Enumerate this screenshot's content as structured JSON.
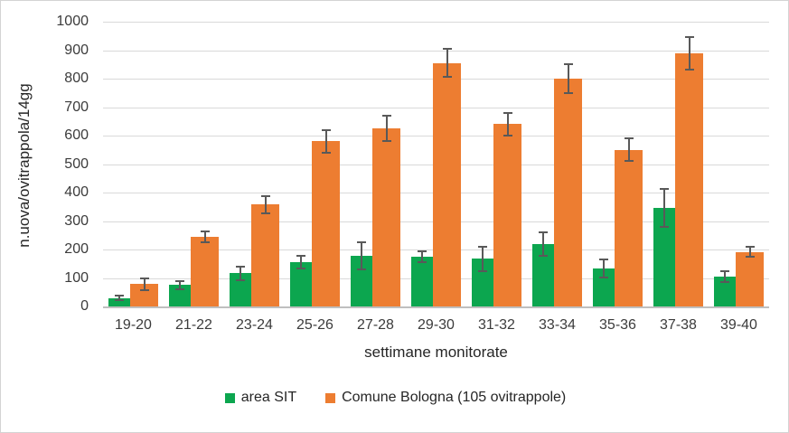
{
  "chart_data": {
    "type": "bar",
    "title": "",
    "xlabel": "settimane monitorate",
    "ylabel": "n.uova/ovitrappola/14gg",
    "ylim": [
      0,
      1000
    ],
    "ytick_step": 100,
    "yticks": [
      0,
      100,
      200,
      300,
      400,
      500,
      600,
      700,
      800,
      900,
      1000
    ],
    "categories": [
      "19-20",
      "21-22",
      "23-24",
      "25-26",
      "27-28",
      "29-30",
      "31-32",
      "33-34",
      "35-36",
      "37-38",
      "39-40"
    ],
    "series": [
      {
        "name": "area SIT",
        "color": "#0ca64f",
        "values": [
          30,
          75,
          117,
          155,
          178,
          175,
          167,
          220,
          133,
          345,
          105
        ],
        "errors": [
          12,
          17,
          27,
          25,
          52,
          23,
          45,
          45,
          34,
          70,
          22
        ]
      },
      {
        "name": "Comune Bologna (105 ovitrappole)",
        "color": "#ed7d31",
        "values": [
          78,
          245,
          358,
          580,
          625,
          855,
          640,
          800,
          550,
          890,
          192
        ],
        "errors": [
          23,
          22,
          34,
          42,
          47,
          53,
          42,
          55,
          43,
          60,
          20
        ]
      }
    ],
    "grid": true,
    "legend_position": "bottom",
    "colors": {
      "gridline": "#d9d9d9",
      "axis_line": "#bfbfbf",
      "error_bar": "#595959",
      "text": "#3b3b3b"
    }
  }
}
